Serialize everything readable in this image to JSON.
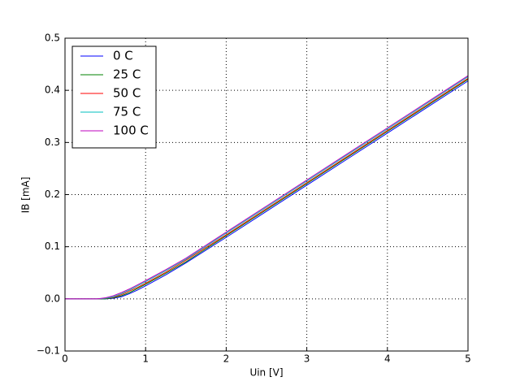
{
  "chart_data": {
    "type": "line",
    "xlabel": "Uin [V]",
    "ylabel": "IB [mA]",
    "x": [
      0,
      0.25,
      0.4,
      0.5,
      0.6,
      0.7,
      0.8,
      0.9,
      1.0,
      1.25,
      1.5,
      2,
      2.5,
      3,
      3.5,
      4,
      4.5,
      5
    ],
    "series": [
      {
        "name": "0 C",
        "color": "#0000ff",
        "values": [
          0,
          0,
          0,
          0,
          0.001,
          0.004,
          0.01,
          0.017,
          0.025,
          0.046,
          0.069,
          0.118,
          0.168,
          0.218,
          0.268,
          0.318,
          0.368,
          0.418
        ]
      },
      {
        "name": "25 C",
        "color": "#008000",
        "values": [
          0,
          0,
          0,
          0,
          0.002,
          0.006,
          0.012,
          0.02,
          0.028,
          0.049,
          0.071,
          0.121,
          0.171,
          0.221,
          0.271,
          0.321,
          0.371,
          0.421
        ]
      },
      {
        "name": "50 C",
        "color": "#ff0000",
        "values": [
          0,
          0,
          0,
          0.001,
          0.003,
          0.008,
          0.015,
          0.022,
          0.03,
          0.051,
          0.074,
          0.123,
          0.173,
          0.223,
          0.273,
          0.323,
          0.373,
          0.423
        ]
      },
      {
        "name": "75 C",
        "color": "#00bfbf",
        "values": [
          0,
          0,
          0,
          0.001,
          0.004,
          0.01,
          0.017,
          0.025,
          0.033,
          0.054,
          0.076,
          0.126,
          0.176,
          0.226,
          0.276,
          0.326,
          0.376,
          0.426
        ]
      },
      {
        "name": "100 C",
        "color": "#bf00bf",
        "values": [
          0,
          0,
          0,
          0.002,
          0.006,
          0.012,
          0.019,
          0.027,
          0.035,
          0.056,
          0.078,
          0.128,
          0.178,
          0.228,
          0.278,
          0.328,
          0.378,
          0.428
        ]
      }
    ],
    "xlim": [
      0,
      5
    ],
    "xticks": [
      0,
      1,
      2,
      3,
      4,
      5
    ],
    "ylim": [
      -0.1,
      0.5
    ],
    "yticks": [
      {
        "value": -0.1,
        "label": "−0.1"
      },
      {
        "value": 0,
        "label": "0.0"
      },
      0.1,
      0.2,
      0.3,
      0.4,
      0.5
    ],
    "grid": true,
    "legend": "upper left"
  }
}
